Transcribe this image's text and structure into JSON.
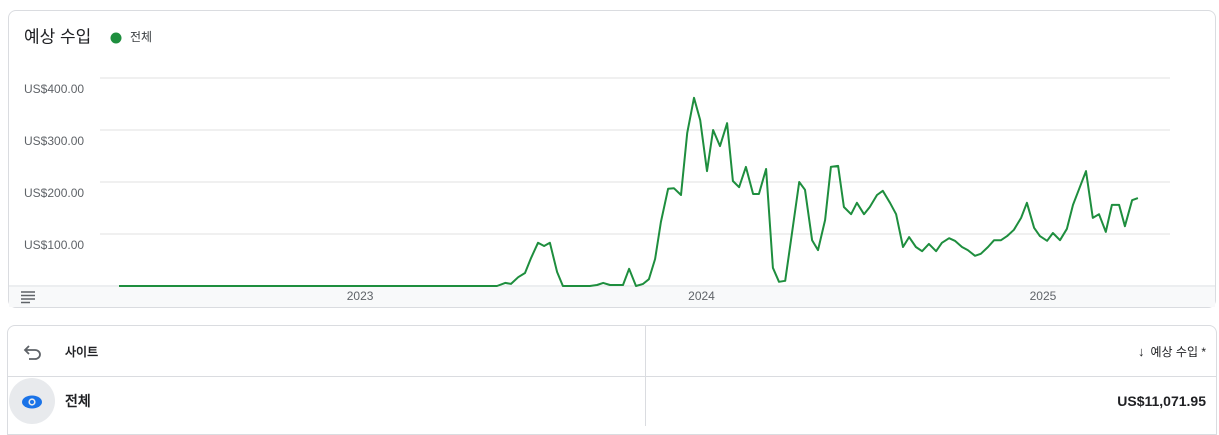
{
  "chart_data": {
    "type": "line",
    "title": "예상 수입",
    "x": [
      2022.294,
      2023.401,
      2023.425,
      2023.442,
      2023.463,
      2023.483,
      2023.501,
      2023.521,
      2023.539,
      2023.556,
      2023.577,
      2023.594,
      2023.615,
      2023.673,
      2023.694,
      2023.712,
      2023.732,
      2023.753,
      2023.77,
      2023.788,
      2023.808,
      2023.829,
      2023.846,
      2023.864,
      2023.881,
      2023.902,
      2023.919,
      2023.94,
      2023.958,
      2023.978,
      2023.996,
      2024.016,
      2024.034,
      2024.054,
      2024.075,
      2024.092,
      2024.11,
      2024.13,
      2024.151,
      2024.168,
      2024.189,
      2024.209,
      2024.227,
      2024.245,
      2024.265,
      2024.286,
      2024.303,
      2024.324,
      2024.341,
      2024.362,
      2024.379,
      2024.4,
      2024.417,
      2024.438,
      2024.455,
      2024.476,
      2024.493,
      2024.514,
      2024.531,
      2024.552,
      2024.57,
      2024.59,
      2024.608,
      2024.628,
      2024.646,
      2024.666,
      2024.687,
      2024.704,
      2024.725,
      2024.742,
      2024.763,
      2024.78,
      2024.801,
      2024.818,
      2024.839,
      2024.857,
      2024.877,
      2024.895,
      2024.915,
      2024.936,
      2024.953,
      2024.974,
      2024.991,
      2025.012,
      2025.029,
      2025.05,
      2025.07,
      2025.088,
      2025.108,
      2025.126,
      2025.146,
      2025.164,
      2025.184,
      2025.202,
      2025.223,
      2025.24,
      2025.261,
      2025.278
    ],
    "series": [
      {
        "name": "전체",
        "color": "#1e8e3e",
        "values": [
          0,
          0,
          6,
          4,
          17,
          25,
          54,
          83,
          77,
          83,
          27,
          0,
          0,
          0,
          2,
          6,
          2,
          2,
          2,
          33,
          0,
          4,
          13,
          52,
          123,
          187,
          188,
          175,
          294,
          362,
          319,
          221,
          300,
          269,
          313,
          202,
          190,
          229,
          177,
          177,
          225,
          35,
          8,
          10,
          102,
          200,
          185,
          88,
          69,
          127,
          229,
          231,
          152,
          138,
          160,
          138,
          152,
          175,
          183,
          160,
          138,
          75,
          94,
          75,
          67,
          81,
          67,
          83,
          92,
          87,
          75,
          69,
          58,
          62,
          75,
          88,
          88,
          96,
          108,
          131,
          160,
          112,
          96,
          87,
          102,
          88,
          110,
          156,
          190,
          221,
          131,
          138,
          104,
          156,
          156,
          115,
          165,
          169
        ]
      }
    ],
    "xlim": [
      2022.25,
      2025.375
    ],
    "xticks": [
      2023,
      2024,
      2025
    ],
    "ylim": [
      0,
      400
    ],
    "yticks": [
      {
        "value": 100,
        "label": "US$100.00"
      },
      {
        "value": 200,
        "label": "US$200.00"
      },
      {
        "value": 300,
        "label": "US$300.00"
      },
      {
        "value": 400,
        "label": "US$400.00"
      }
    ],
    "grid": true
  },
  "table": {
    "headers": [
      "사이트",
      "예상 수입 *"
    ],
    "rows": [
      [
        "전체",
        "US$11,071.95"
      ]
    ]
  }
}
